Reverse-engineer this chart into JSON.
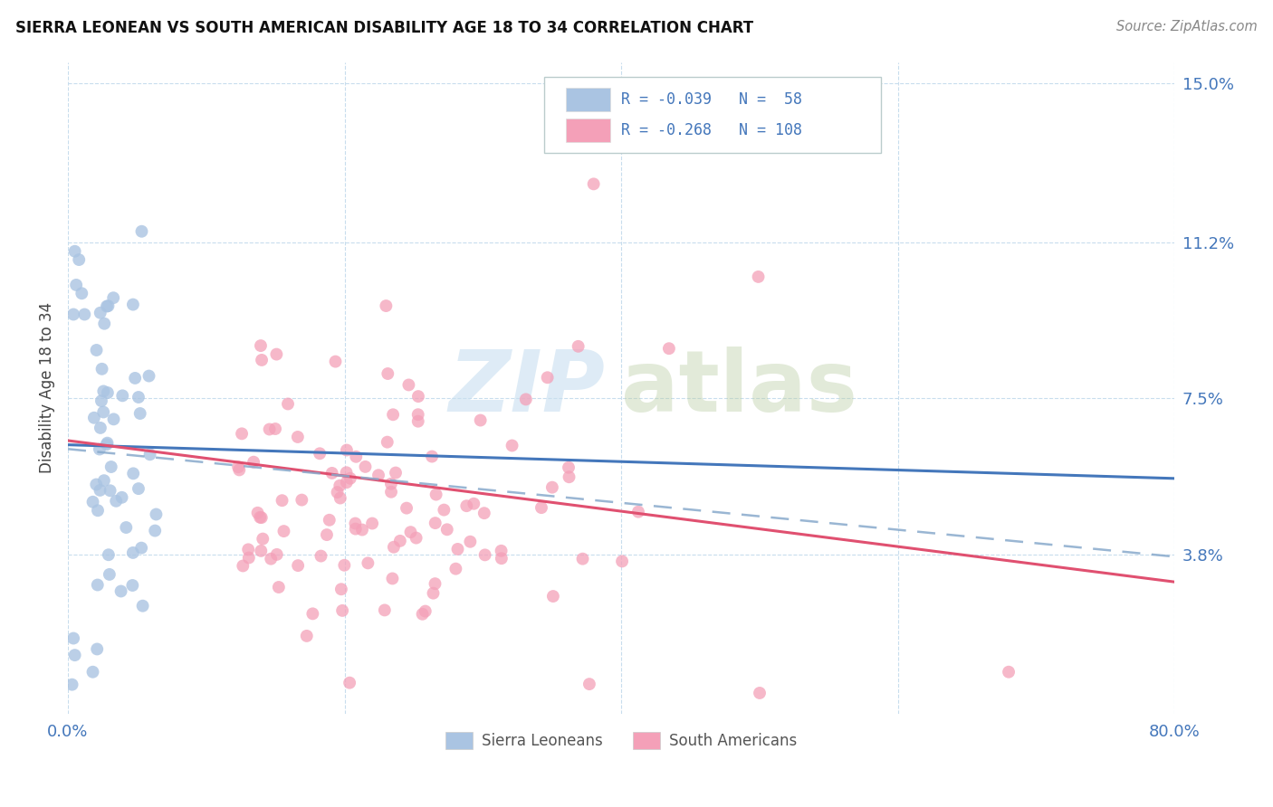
{
  "title": "SIERRA LEONEAN VS SOUTH AMERICAN DISABILITY AGE 18 TO 34 CORRELATION CHART",
  "source": "Source: ZipAtlas.com",
  "ylabel": "Disability Age 18 to 34",
  "xlim": [
    0.0,
    0.8
  ],
  "ylim": [
    0.0,
    0.155
  ],
  "ytick_labels_right": [
    "15.0%",
    "11.2%",
    "7.5%",
    "3.8%"
  ],
  "ytick_values_right": [
    0.15,
    0.112,
    0.075,
    0.038
  ],
  "color_sierra": "#aac4e2",
  "color_south": "#f4a0b8",
  "color_line_sierra": "#4477bb",
  "color_line_south": "#e05070",
  "color_axis_labels": "#4477bb",
  "background_color": "#ffffff",
  "grid_color": "#c8dded"
}
